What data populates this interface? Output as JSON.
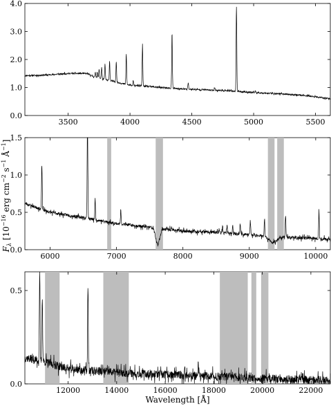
{
  "figure": {
    "ylabel_text": "F",
    "ylabel_sub": "λ",
    "ylabel_units": " [10",
    "ylabel_exp1": "−16",
    "ylabel_units2": " erg cm",
    "ylabel_exp2": "−2",
    "ylabel_units3": " s",
    "ylabel_exp3": "−1",
    "ylabel_units4": " Å",
    "ylabel_exp4": "−1",
    "ylabel_close": "]",
    "xlabel": "Wavelength [Å]"
  },
  "chart_data": [
    {
      "type": "line",
      "panel": "top",
      "xlim": [
        3150,
        5620
      ],
      "ylim": [
        0.0,
        4.0
      ],
      "xticks": [
        3500,
        4000,
        4500,
        5000,
        5500
      ],
      "yticks": [
        0.0,
        1.0,
        2.0,
        3.0,
        4.0
      ],
      "ytick_labels": [
        "0.0",
        "1.0",
        "2.0",
        "3.0",
        "4.0"
      ],
      "continuum": [
        [
          3150,
          1.42
        ],
        [
          3300,
          1.44
        ],
        [
          3500,
          1.5
        ],
        [
          3650,
          1.5
        ],
        [
          3700,
          1.4
        ],
        [
          3800,
          1.28
        ],
        [
          3900,
          1.18
        ],
        [
          4000,
          1.08
        ],
        [
          4200,
          1.02
        ],
        [
          4400,
          0.95
        ],
        [
          4600,
          0.92
        ],
        [
          4800,
          0.88
        ],
        [
          5000,
          0.82
        ],
        [
          5200,
          0.78
        ],
        [
          5400,
          0.72
        ],
        [
          5620,
          0.6
        ]
      ],
      "peaks": [
        {
          "x": 3720,
          "h": 0.15
        },
        {
          "x": 3735,
          "h": 0.2
        },
        {
          "x": 3750,
          "h": 0.3
        },
        {
          "x": 3771,
          "h": 0.4
        },
        {
          "x": 3798,
          "h": 0.55
        },
        {
          "x": 3835,
          "h": 0.7
        },
        {
          "x": 3889,
          "h": 0.75
        },
        {
          "x": 3970,
          "h": 1.1
        },
        {
          "x": 4026,
          "h": 0.2
        },
        {
          "x": 4101,
          "h": 1.45
        },
        {
          "x": 4340,
          "h": 2.0
        },
        {
          "x": 4471,
          "h": 0.25
        },
        {
          "x": 4686,
          "h": 0.1
        },
        {
          "x": 4861,
          "h": 3.05
        },
        {
          "x": 5015,
          "h": 0.06
        }
      ],
      "noise": 0.025,
      "seed": 11
    },
    {
      "type": "line",
      "panel": "middle",
      "xlim": [
        5620,
        10220
      ],
      "ylim": [
        0.0,
        1.5
      ],
      "xticks": [
        6000,
        7000,
        8000,
        9000,
        10000
      ],
      "yticks": [
        0.0,
        0.5,
        1.0,
        1.5
      ],
      "ytick_labels": [
        "0.0",
        "0.5",
        "1.0",
        "1.5"
      ],
      "shaded_bands": [
        [
          6860,
          6920
        ],
        [
          7590,
          7700
        ],
        [
          9280,
          9380
        ],
        [
          9420,
          9520
        ]
      ],
      "continuum": [
        [
          5620,
          0.62
        ],
        [
          6000,
          0.5
        ],
        [
          6500,
          0.43
        ],
        [
          7000,
          0.35
        ],
        [
          7500,
          0.3
        ],
        [
          8000,
          0.25
        ],
        [
          8500,
          0.23
        ],
        [
          9000,
          0.2
        ],
        [
          9500,
          0.17
        ],
        [
          10000,
          0.15
        ],
        [
          10220,
          0.14
        ]
      ],
      "peaks": [
        {
          "x": 5876,
          "h": 0.6
        },
        {
          "x": 6563,
          "h": 1.5
        },
        {
          "x": 6678,
          "h": 0.25
        },
        {
          "x": 7065,
          "h": 0.2
        },
        {
          "x": 8545,
          "h": 0.06
        },
        {
          "x": 8598,
          "h": 0.08
        },
        {
          "x": 8665,
          "h": 0.1
        },
        {
          "x": 8750,
          "h": 0.12
        },
        {
          "x": 8863,
          "h": 0.15
        },
        {
          "x": 9015,
          "h": 0.18
        },
        {
          "x": 9229,
          "h": 0.22
        },
        {
          "x": 9546,
          "h": 0.3
        },
        {
          "x": 10049,
          "h": 0.38
        }
      ],
      "dips": [
        {
          "x": 7620,
          "w": 60,
          "d": 0.22
        },
        {
          "x": 9350,
          "w": 120,
          "d": 0.08
        }
      ],
      "noise": 0.02,
      "seed": 23
    },
    {
      "type": "line",
      "panel": "bottom",
      "xlim": [
        10220,
        22800
      ],
      "ylim": [
        0.0,
        0.6
      ],
      "xticks": [
        12000,
        14000,
        16000,
        18000,
        20000,
        22000
      ],
      "yticks": [
        0.0,
        0.5
      ],
      "ytick_labels": [
        "0.0",
        "0.5"
      ],
      "shaded_bands": [
        [
          11050,
          11650
        ],
        [
          13450,
          14500
        ],
        [
          18250,
          19400
        ],
        [
          19550,
          19750
        ],
        [
          19950,
          20250
        ]
      ],
      "continuum": [
        [
          10220,
          0.14
        ],
        [
          11000,
          0.12
        ],
        [
          12000,
          0.08
        ],
        [
          13000,
          0.07
        ],
        [
          14000,
          0.06
        ],
        [
          15000,
          0.055
        ],
        [
          16000,
          0.05
        ],
        [
          17000,
          0.045
        ],
        [
          18000,
          0.04
        ],
        [
          19000,
          0.035
        ],
        [
          20000,
          0.03
        ],
        [
          21000,
          0.025
        ],
        [
          22000,
          0.022
        ],
        [
          22800,
          0.02
        ]
      ],
      "peaks": [
        {
          "x": 10830,
          "h": 0.5
        },
        {
          "x": 10938,
          "h": 0.35
        },
        {
          "x": 12818,
          "h": 0.45
        },
        {
          "x": 16800,
          "h": 0.05
        },
        {
          "x": 17360,
          "h": 0.06
        },
        {
          "x": 21660,
          "h": 0.04
        }
      ],
      "noise": 0.022,
      "seed": 37
    }
  ]
}
